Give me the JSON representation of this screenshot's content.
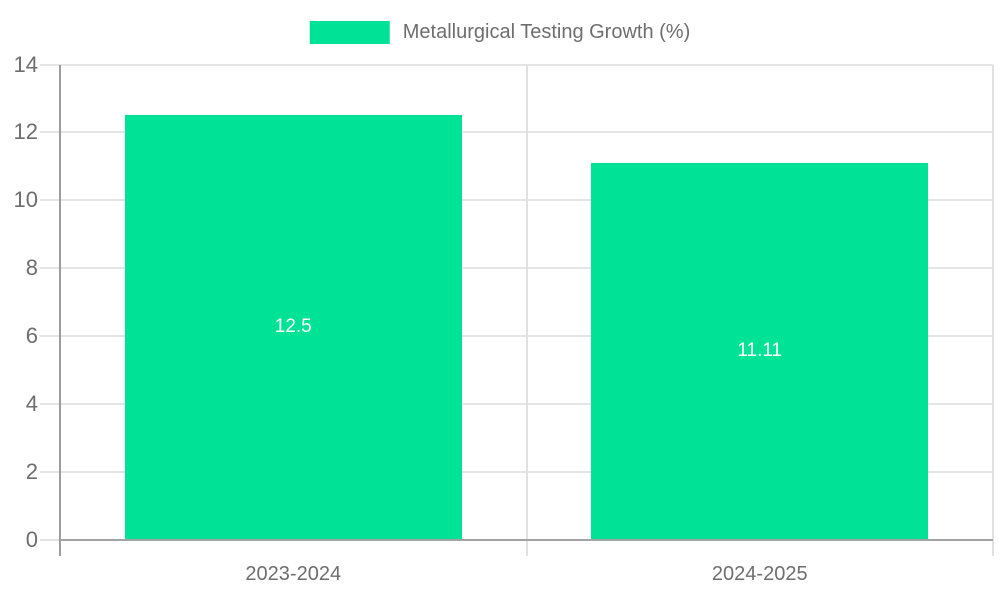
{
  "legend": {
    "items": [
      {
        "label": "Metallurgical Testing Growth (%)",
        "color": "#00e396"
      }
    ]
  },
  "chart_data": {
    "type": "bar",
    "title": "Metallurgical Testing Growth (%)",
    "categories": [
      "2023-2024",
      "2024-2025"
    ],
    "values": [
      12.5,
      11.11
    ],
    "value_labels": [
      "12.5",
      "11.11"
    ],
    "series": [
      {
        "name": "Metallurgical Testing Growth (%)",
        "values": [
          12.5,
          11.11
        ],
        "color": "#00e396"
      }
    ],
    "xlabel": "",
    "ylabel": "",
    "ylim": [
      0,
      14
    ],
    "yticks": [
      0,
      2,
      4,
      6,
      8,
      10,
      12,
      14
    ],
    "grid": true,
    "legend_position": "top-center",
    "value_label_position": "inside-center"
  },
  "colors": {
    "bar": "#00e396",
    "axis_line": "#a3a3a3",
    "y_axis_line": "#9d9d9d",
    "grid_line": "#e5e5e5",
    "tick_line": "#e1e1e1",
    "axis_text": "#6e6e6e",
    "legend_text": "#6e6e6e",
    "value_text": "#ffffff",
    "background": "#ffffff"
  }
}
